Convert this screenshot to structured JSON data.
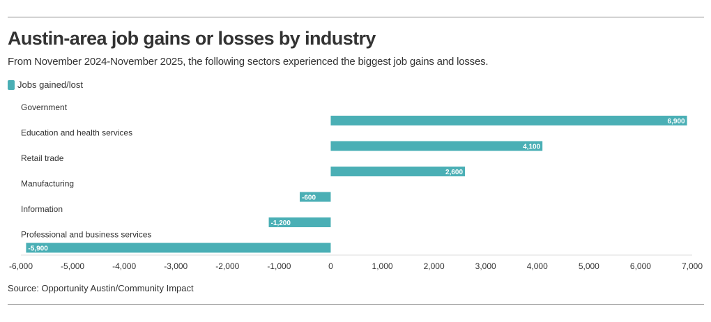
{
  "chart_data": {
    "type": "bar",
    "orientation": "horizontal",
    "title": "Austin-area job gains or losses by industry",
    "subtitle": "From November 2024-November 2025, the following sectors experienced the biggest job gains and losses.",
    "categories": [
      "Government",
      "Education and health services",
      "Retail trade",
      "Manufacturing",
      "Information",
      "Professional and business services"
    ],
    "series": [
      {
        "name": "Jobs gained/lost",
        "values": [
          6900,
          4100,
          2600,
          -600,
          -1200,
          -5900
        ]
      }
    ],
    "value_labels": [
      "6,900",
      "4,100",
      "2,600",
      "-600",
      "-1,200",
      "-5,900"
    ],
    "xlim": [
      -6000,
      7000
    ],
    "xticks": [
      -6000,
      -5000,
      -4000,
      -3000,
      -2000,
      -1000,
      0,
      1000,
      2000,
      3000,
      4000,
      5000,
      6000,
      7000
    ],
    "xtick_labels": [
      "-6,000",
      "-5,000",
      "-4,000",
      "-3,000",
      "-2,000",
      "-1,000",
      "0",
      "1,000",
      "2,000",
      "3,000",
      "4,000",
      "5,000",
      "6,000",
      "7,000"
    ],
    "grid": false,
    "legend_position": "top-left",
    "bar_color": "#4aafb5",
    "source": "Source: Opportunity Austin/Community Impact"
  }
}
